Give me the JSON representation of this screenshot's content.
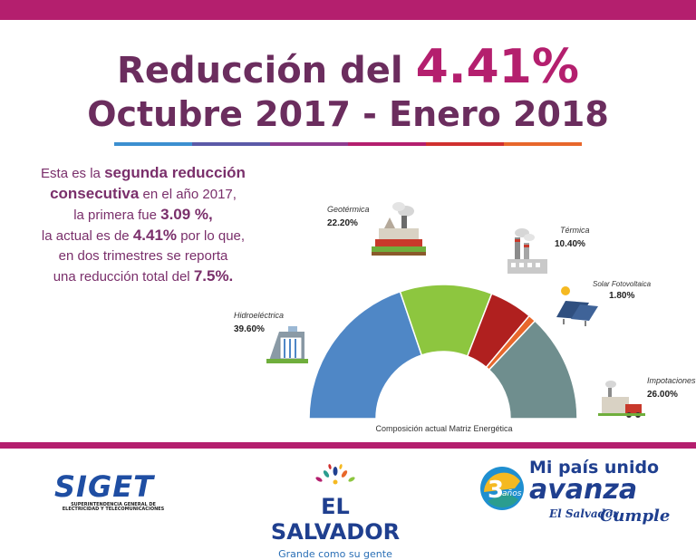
{
  "header": {
    "title_prefix": "Reducción del",
    "title_value": "4.41%",
    "period": "Octubre 2017 - Enero 2018"
  },
  "description": {
    "line1_a": "Esta es la",
    "line1_b": "segunda  reducción",
    "line2_a": "consecutiva",
    "line2_b": "en el año 2017,",
    "line3_a": "la primera fue",
    "line3_b": "3.09 %,",
    "line4_a": "la actual es de",
    "line4_b": "4.41%",
    "line4_c": "por lo que,",
    "line5": "en dos trimestres se reporta",
    "line6_a": "una reducción total del",
    "line6_b": "7.5%."
  },
  "chart_data": {
    "type": "pie",
    "variant": "half-donut",
    "title": "Composición actual Matriz Energética",
    "slices": [
      {
        "label": "Hidroeléctrica",
        "display": "39.60%",
        "value": 39.6,
        "color": "#4f87c6"
      },
      {
        "label": "Geotérmica",
        "display": "22.20%",
        "value": 22.2,
        "color": "#8dc63f"
      },
      {
        "label": "Térmica",
        "display": "10.40%",
        "value": 10.4,
        "color": "#b0201f"
      },
      {
        "label": "Solar Fotovoltaica",
        "display": "1.80%",
        "value": 1.8,
        "color": "#e8672b"
      },
      {
        "label": "Impotaciones",
        "display": "26.00%",
        "value": 26.0,
        "color": "#6f8e8e"
      }
    ]
  },
  "footer": {
    "siget_name": "SIGET",
    "siget_sub1": "SUPERINTENDENCIA GENERAL DE",
    "siget_sub2": "ELECTRICIDAD Y TELECOMUNICACIONES",
    "el_salvador": "EL SALVADOR",
    "el_salvador_tagline": "Grande como su gente",
    "mp_line1": "Mi país unido",
    "mp_line2": "avanza",
    "mp_badge": "3 años",
    "mp_line3": "El Salvador",
    "mp_line4": "Cumple"
  },
  "colors": {
    "brand_magenta": "#b41f6e",
    "title_purple": "#6b2d5e",
    "brand_blue": "#1f3f8f"
  }
}
